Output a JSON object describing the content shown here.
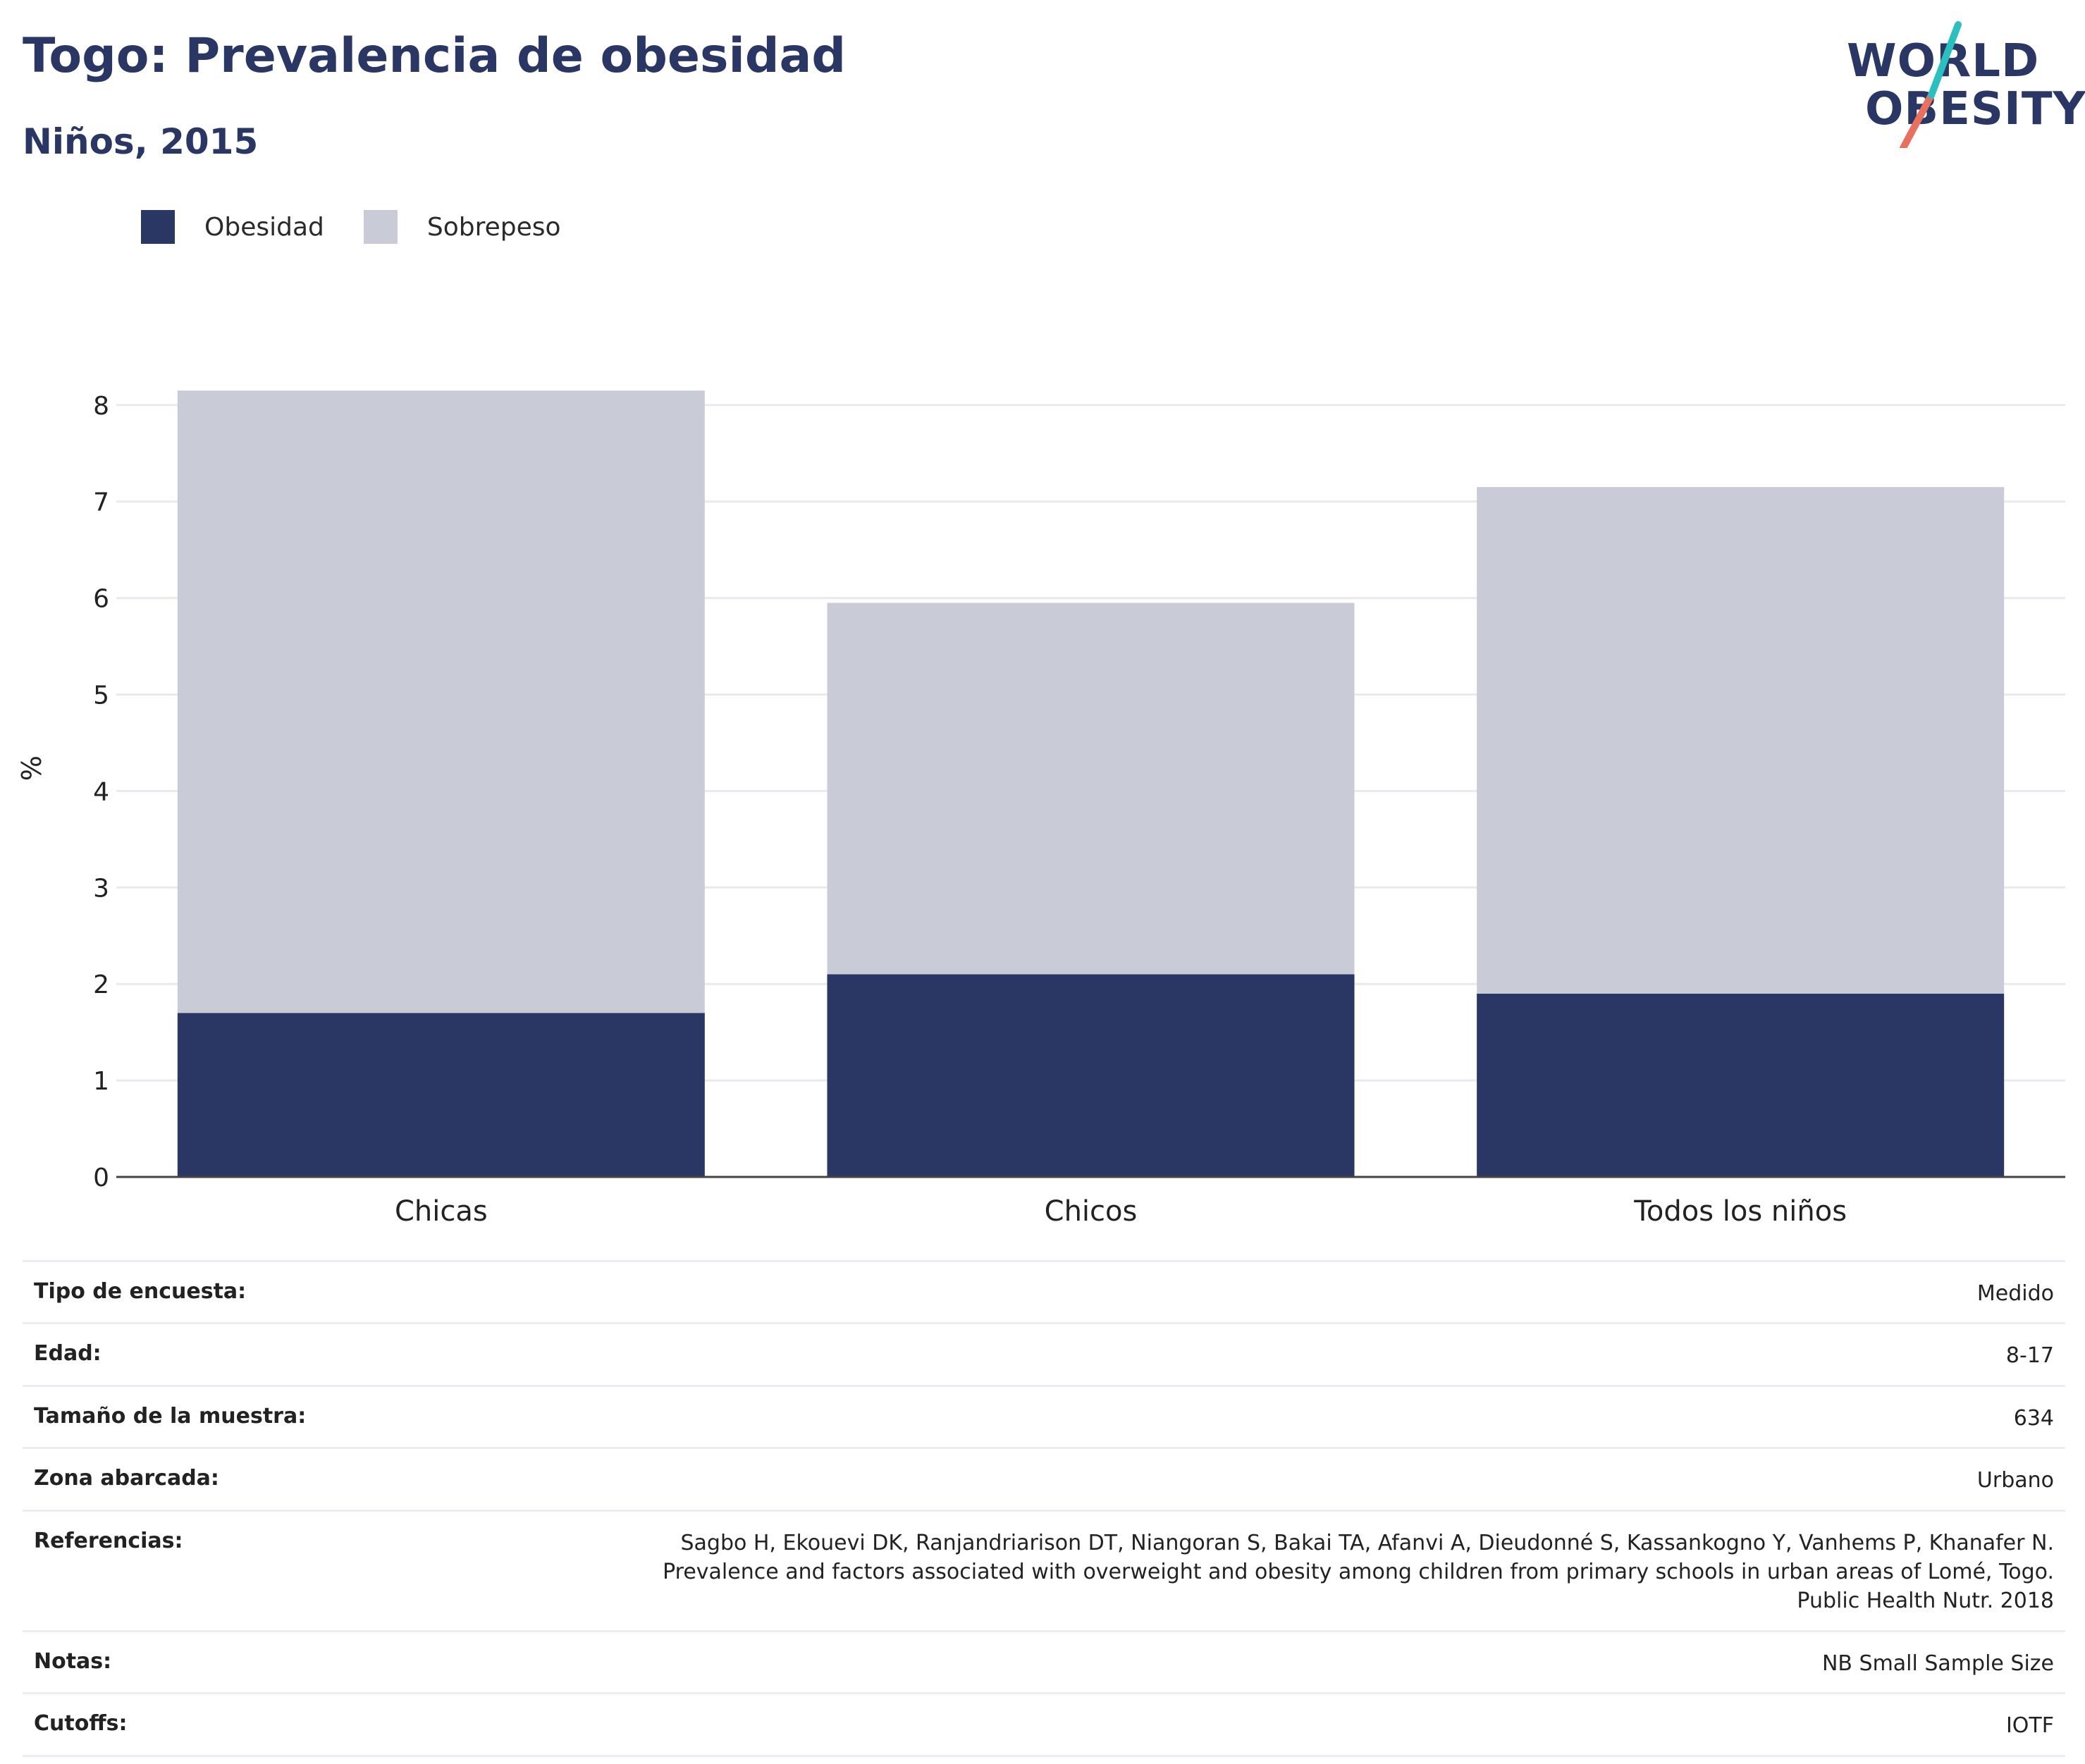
{
  "title": "Togo: Prevalencia de obesidad",
  "subtitle": "Niños, 2015",
  "logo": {
    "line1": "WORLD",
    "line2": "OBESITY"
  },
  "colors": {
    "obesidad": "#2a3663",
    "sobrepeso": "#c9cbd7",
    "title": "#2a3663",
    "logo_teal": "#2bbfbf",
    "logo_coral": "#e8705f"
  },
  "legend": [
    {
      "label": "Obesidad",
      "color": "#2a3663"
    },
    {
      "label": "Sobrepeso",
      "color": "#c9cbd7"
    }
  ],
  "chart_data": {
    "type": "bar",
    "stacked": true,
    "categories": [
      "Chicas",
      "Chicos",
      "Todos los niños"
    ],
    "series": [
      {
        "name": "Obesidad",
        "values": [
          1.7,
          2.1,
          1.9
        ]
      },
      {
        "name": "Sobrepeso",
        "values": [
          6.45,
          3.85,
          5.25
        ]
      }
    ],
    "totals": [
      8.15,
      5.95,
      7.15
    ],
    "ylabel": "%",
    "ylim": [
      0,
      8.4
    ],
    "yticks": [
      0,
      1,
      2,
      3,
      4,
      5,
      6,
      7,
      8
    ],
    "grid": true,
    "legend_position": "top-left"
  },
  "info": [
    {
      "key": "Tipo de encuesta:",
      "value": "Medido"
    },
    {
      "key": "Edad:",
      "value": "8-17"
    },
    {
      "key": "Tamaño de la muestra:",
      "value": "634"
    },
    {
      "key": "Zona abarcada:",
      "value": "Urbano"
    },
    {
      "key": "Referencias:",
      "value": [
        "Sagbo H, Ekouevi DK, Ranjandriarison DT, Niangoran S, Bakai TA, Afanvi A, Dieudonné S, Kassankogno Y, Vanhems P, Khanafer N.",
        "Prevalence and factors associated with overweight and obesity among children from primary schools in urban areas of Lomé, Togo.",
        "Public Health Nutr. 2018"
      ]
    },
    {
      "key": "Notas:",
      "value": "NB Small Sample Size"
    },
    {
      "key": "Cutoffs:",
      "value": "IOTF"
    }
  ]
}
